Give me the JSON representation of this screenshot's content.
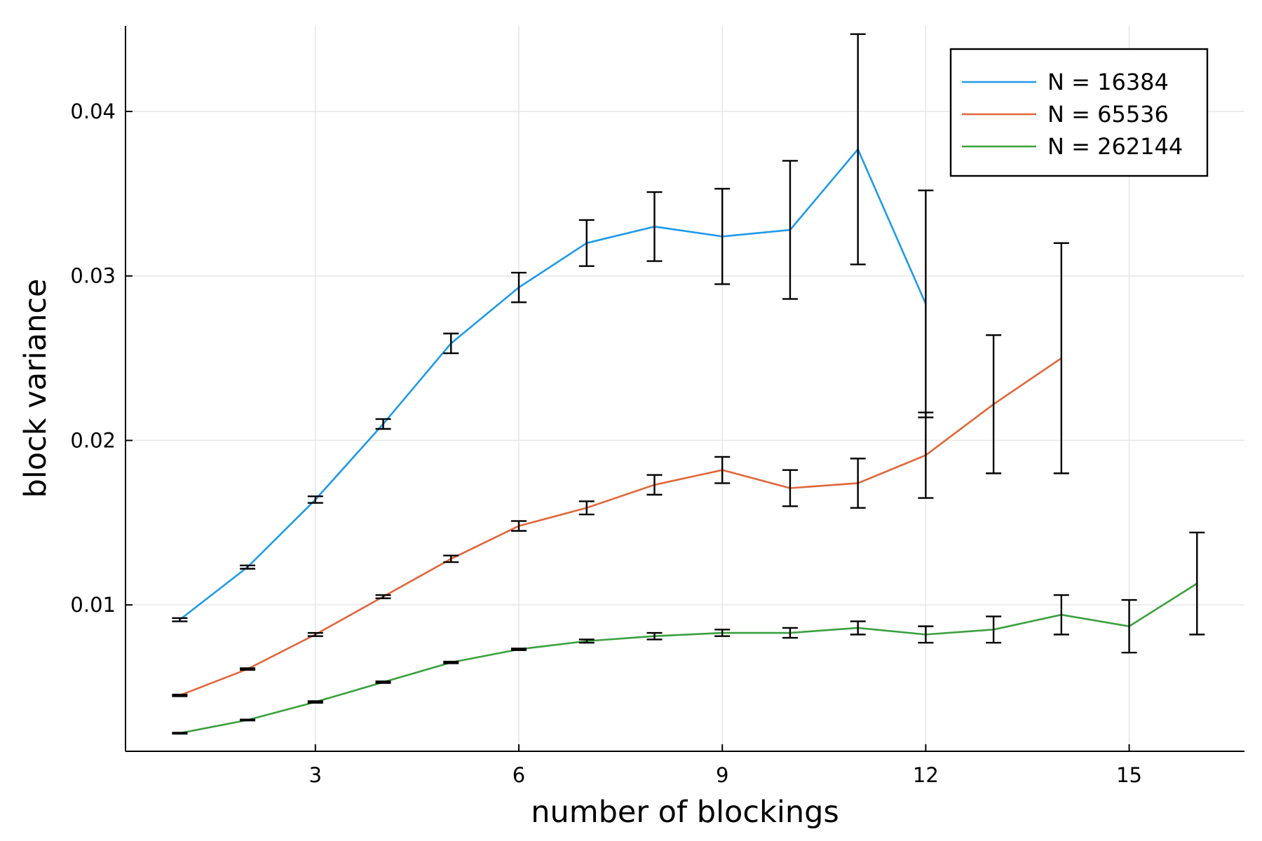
{
  "chart_data": {
    "type": "line",
    "xlabel": "number of blockings",
    "ylabel": "block variance",
    "xlim": [
      0.2,
      16.7
    ],
    "ylim": [
      0.0011,
      0.0452
    ],
    "x_ticks": [
      3,
      6,
      9,
      12,
      15
    ],
    "y_ticks": [
      0.01,
      0.02,
      0.03,
      0.04
    ],
    "y_tick_labels": [
      "0.01",
      "0.02",
      "0.03",
      "0.04"
    ],
    "grid": true,
    "legend_position": "top-right",
    "series": [
      {
        "name": "N = 16384",
        "color": "#1f9ae8",
        "x": [
          1,
          2,
          3,
          4,
          5,
          6,
          7,
          8,
          9,
          10,
          11,
          12
        ],
        "y": [
          0.0091,
          0.0123,
          0.0164,
          0.021,
          0.0259,
          0.0293,
          0.032,
          0.033,
          0.0324,
          0.0328,
          0.0377,
          0.0283
        ],
        "err": [
          0.0001,
          0.0001,
          0.0002,
          0.0003,
          0.0006,
          0.0009,
          0.0014,
          0.0021,
          0.0029,
          0.0042,
          0.007,
          0.0069
        ]
      },
      {
        "name": "N = 65536",
        "color": "#e0663a",
        "x": [
          1,
          2,
          3,
          4,
          5,
          6,
          7,
          8,
          9,
          10,
          11,
          12,
          13,
          14
        ],
        "y": [
          0.0045,
          0.0061,
          0.0082,
          0.0105,
          0.0128,
          0.0148,
          0.0159,
          0.0173,
          0.0182,
          0.0171,
          0.0174,
          0.0191,
          0.0222,
          0.025
        ],
        "err": [
          5e-05,
          5e-05,
          0.0001,
          0.0001,
          0.0002,
          0.0003,
          0.0004,
          0.0006,
          0.0008,
          0.0011,
          0.0015,
          0.0026,
          0.0042,
          0.007
        ]
      },
      {
        "name": "N = 262144",
        "color": "#3aa03e",
        "x": [
          1,
          2,
          3,
          4,
          5,
          6,
          7,
          8,
          9,
          10,
          11,
          12,
          13,
          14,
          15,
          16
        ],
        "y": [
          0.0022,
          0.003,
          0.0041,
          0.0053,
          0.0065,
          0.0073,
          0.0078,
          0.0081,
          0.0083,
          0.0083,
          0.0086,
          0.0082,
          0.0085,
          0.0094,
          0.0087,
          0.0113
        ],
        "err": [
          3e-05,
          3e-05,
          5e-05,
          5e-05,
          5e-05,
          5e-05,
          0.0001,
          0.0002,
          0.0002,
          0.0003,
          0.0004,
          0.0005,
          0.0008,
          0.0012,
          0.0016,
          0.0031
        ]
      }
    ]
  }
}
